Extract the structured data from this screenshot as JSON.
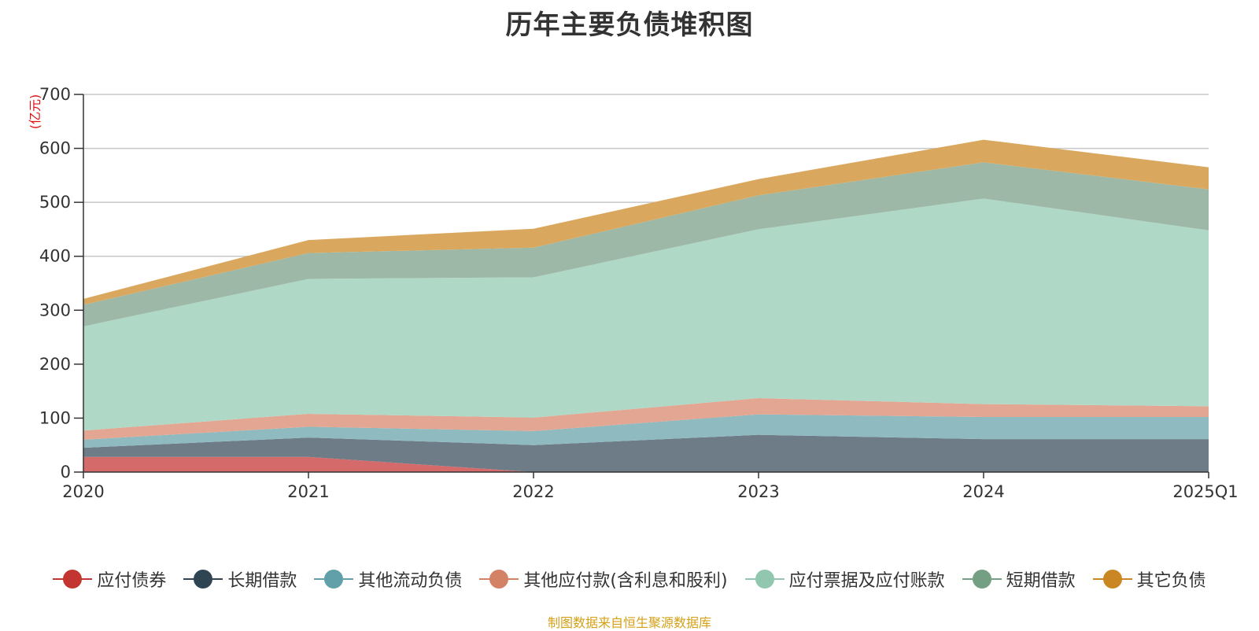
{
  "chart_data": {
    "type": "area",
    "title": "历年主要负债堆积图",
    "unit": "(亿元)",
    "x": [
      "2020",
      "2021",
      "2022",
      "2023",
      "2024",
      "2025Q1"
    ],
    "ylim": [
      0,
      700
    ],
    "yticks": [
      "0",
      "100",
      "200",
      "300",
      "400",
      "500",
      "600",
      "700"
    ],
    "grid": true,
    "legend_position": "bottom",
    "stacked": true,
    "series": [
      {
        "name": "应付债券",
        "values": [
          28,
          28,
          0,
          0,
          0,
          0
        ],
        "color": "#c23531",
        "fill": "#d46a6a"
      },
      {
        "name": "长期借款",
        "values": [
          17,
          36,
          50,
          69,
          61,
          61
        ],
        "color": "#2f4554",
        "fill": "#6e7c88"
      },
      {
        "name": "其他流动负债",
        "values": [
          15,
          20,
          26,
          38,
          41,
          41
        ],
        "color": "#61a0a8",
        "fill": "#8fbac0"
      },
      {
        "name": "其他应付款(含利息和股利)",
        "values": [
          17,
          24,
          25,
          30,
          24,
          20
        ],
        "color": "#d48265",
        "fill": "#e2a692"
      },
      {
        "name": "应付票据及应付账款",
        "values": [
          193,
          250,
          260,
          313,
          381,
          326
        ],
        "color": "#91c7ae",
        "fill": "#b0d8c6"
      },
      {
        "name": "短期借款",
        "values": [
          40,
          48,
          55,
          63,
          67,
          76
        ],
        "color": "#749f83",
        "fill": "#9db8a6"
      },
      {
        "name": "其它负债",
        "values": [
          11,
          24,
          35,
          30,
          42,
          41
        ],
        "color": "#ca8622",
        "fill": "#d9a85e"
      }
    ]
  },
  "footer": {
    "source": "制图数据来自恒生聚源数据库"
  }
}
